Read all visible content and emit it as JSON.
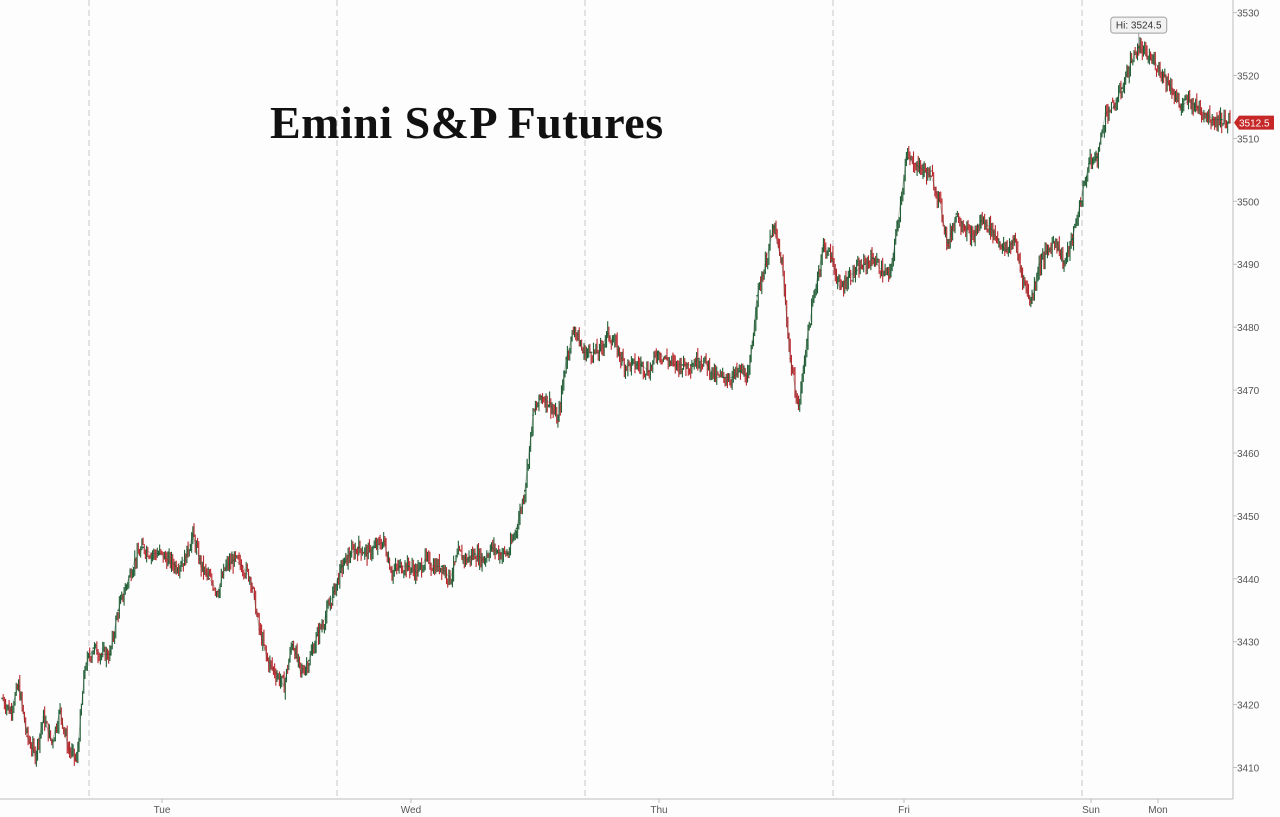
{
  "chart_data": {
    "type": "line",
    "title": "Emini S&P Futures",
    "xlabel": "",
    "ylabel": "",
    "ylim": [
      3405,
      3532
    ],
    "y_ticks": [
      3410,
      3420,
      3430,
      3440,
      3450,
      3460,
      3470,
      3480,
      3490,
      3500,
      3510,
      3520,
      3530
    ],
    "x_tick_labels": [
      "Tue",
      "Wed",
      "Thu",
      "Fri",
      "Sun",
      "Mon"
    ],
    "session_boundaries": [
      "Tue",
      "Wed",
      "Thu",
      "Fri",
      "Sun"
    ],
    "grid": "vertical dashed lines at session starts",
    "series": [
      {
        "values": [
          3421,
          3419,
          3423,
          3415,
          3412,
          3418,
          3414,
          3419,
          3413,
          3411,
          3426,
          3429,
          3428,
          3428,
          3435,
          3439,
          3443,
          3445,
          3444,
          3444,
          3443,
          3442,
          3443,
          3447,
          3442,
          3440,
          3438,
          3442,
          3443,
          3442,
          3440,
          3432,
          3427,
          3425,
          3423,
          3430,
          3425,
          3427,
          3431,
          3434,
          3438,
          3442,
          3444,
          3445,
          3444,
          3445,
          3446,
          3441,
          3442,
          3442,
          3441,
          3443,
          3442,
          3442,
          3440,
          3444,
          3443,
          3444,
          3443,
          3445,
          3444,
          3444,
          3448,
          3454,
          3466,
          3469,
          3468,
          3465,
          3475,
          3480,
          3476,
          3476,
          3476,
          3479,
          3477,
          3474,
          3474,
          3474,
          3473,
          3476,
          3475,
          3474,
          3474,
          3474,
          3475,
          3474,
          3472,
          3472,
          3472,
          3473,
          3472,
          3485,
          3490,
          3496,
          3490,
          3475,
          3467,
          3478,
          3486,
          3493,
          3491,
          3486,
          3488,
          3489,
          3490,
          3491,
          3489,
          3488,
          3497,
          3507,
          3506,
          3505,
          3504,
          3500,
          3493,
          3498,
          3496,
          3494,
          3497,
          3496,
          3494,
          3492,
          3494,
          3488,
          3484,
          3490,
          3492,
          3494,
          3490,
          3494,
          3500,
          3506,
          3507,
          3514,
          3515,
          3518,
          3522,
          3524.5,
          3523,
          3522,
          3520,
          3518,
          3515,
          3516,
          3515,
          3514,
          3513,
          3513,
          3512.5
        ]
      }
    ],
    "annotations": [
      {
        "label": "Hi: 3524.5",
        "value": 3524.5
      },
      {
        "label": "3512.5",
        "value": 3512.5
      }
    ],
    "colors": {
      "up": "#1f5e34",
      "down": "#b9262c",
      "grid": "#c8c8c8",
      "axis": "#555555",
      "last_price_bg": "#c62828"
    }
  }
}
